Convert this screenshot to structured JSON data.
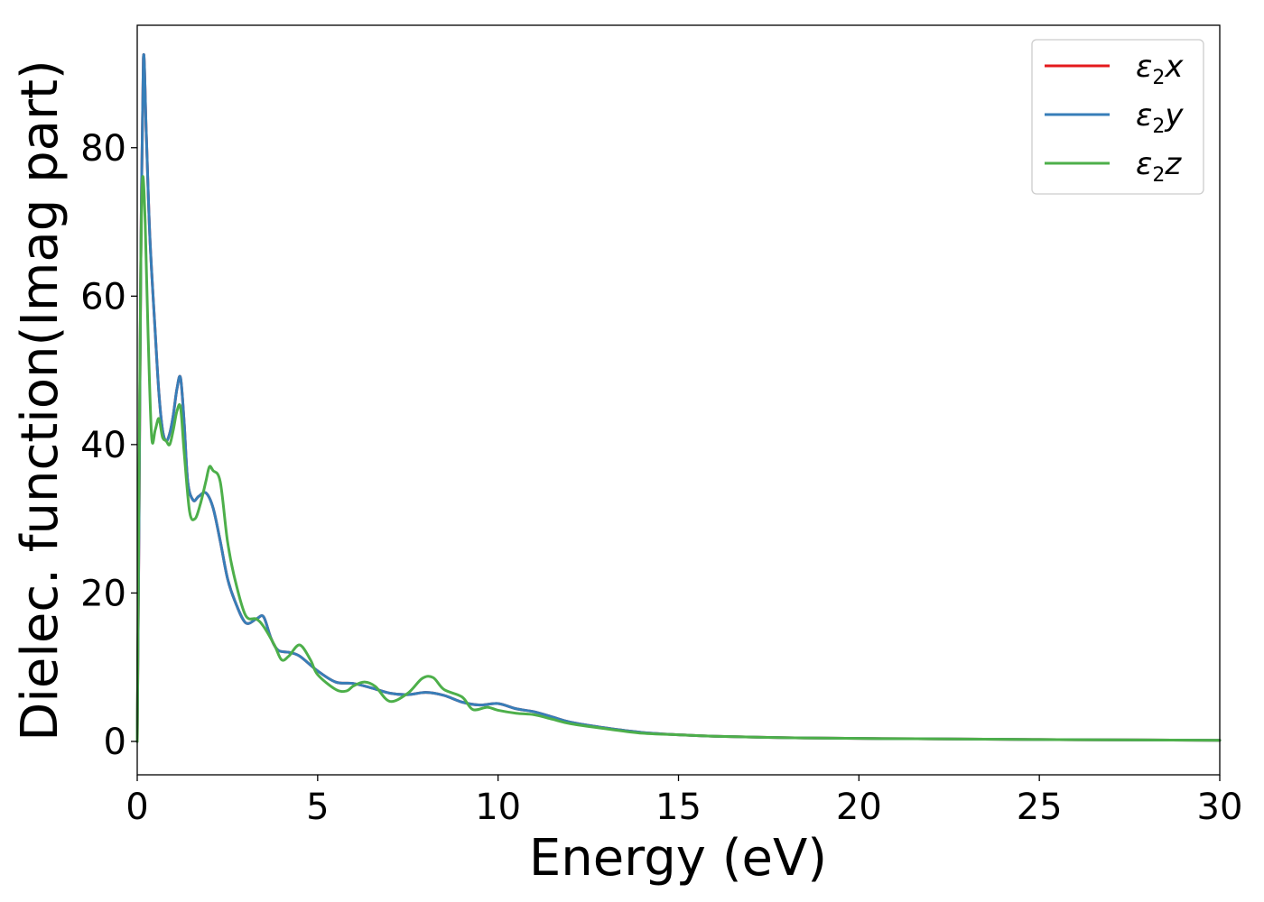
{
  "chart_data": {
    "type": "line",
    "xlabel": "Energy (eV)",
    "ylabel": "Dielec. function(Imag part)",
    "xlim": [
      0,
      30
    ],
    "ylim": [
      -4.5,
      96.5
    ],
    "xticks": [
      0,
      5,
      10,
      15,
      20,
      25,
      30
    ],
    "yticks": [
      0,
      20,
      40,
      60,
      80
    ],
    "grid": false,
    "legend_position": "top-right",
    "series": [
      {
        "name": "ε2x",
        "symbol": "ε",
        "sub": "2",
        "axis": "x",
        "color": "#e41a1c",
        "x": [
          0,
          0.05,
          0.1,
          0.17,
          0.25,
          0.35,
          0.5,
          0.6,
          0.7,
          0.8,
          0.9,
          1.0,
          1.1,
          1.2,
          1.3,
          1.4,
          1.55,
          1.7,
          1.9,
          2.1,
          2.3,
          2.5,
          2.7,
          3.0,
          3.3,
          3.5,
          3.7,
          3.9,
          4.2,
          4.5,
          5.0,
          5.5,
          6.0,
          6.5,
          7.0,
          7.5,
          8.0,
          8.5,
          9.0,
          9.5,
          10.0,
          10.5,
          11.0,
          11.5,
          12.0,
          13.0,
          14.0,
          15.0,
          16.0,
          18.0,
          20.0,
          22.0,
          25.0,
          28.0,
          30.0
        ],
        "y": [
          0,
          30,
          65,
          92,
          82,
          68,
          55,
          47,
          42,
          40.5,
          41.5,
          44,
          47.5,
          49,
          43,
          35,
          32.5,
          33,
          33.5,
          31.5,
          27,
          22,
          19,
          16,
          16.5,
          16.8,
          14,
          12.3,
          12,
          11.5,
          9.5,
          8,
          7.8,
          7.2,
          6.5,
          6.3,
          6.6,
          6.2,
          5.3,
          4.9,
          5.1,
          4.4,
          4.0,
          3.3,
          2.6,
          1.8,
          1.2,
          0.9,
          0.7,
          0.5,
          0.4,
          0.35,
          0.25,
          0.2,
          0.15
        ]
      },
      {
        "name": "ε2y",
        "symbol": "ε",
        "sub": "2",
        "axis": "y",
        "color": "#377eb8",
        "x": [
          0,
          0.05,
          0.1,
          0.17,
          0.25,
          0.35,
          0.5,
          0.6,
          0.7,
          0.8,
          0.9,
          1.0,
          1.1,
          1.2,
          1.3,
          1.4,
          1.55,
          1.7,
          1.9,
          2.1,
          2.3,
          2.5,
          2.7,
          3.0,
          3.3,
          3.5,
          3.7,
          3.9,
          4.2,
          4.5,
          5.0,
          5.5,
          6.0,
          6.5,
          7.0,
          7.5,
          8.0,
          8.5,
          9.0,
          9.5,
          10.0,
          10.5,
          11.0,
          11.5,
          12.0,
          13.0,
          14.0,
          15.0,
          16.0,
          18.0,
          20.0,
          22.0,
          25.0,
          28.0,
          30.0
        ],
        "y": [
          0,
          30,
          65,
          92,
          82,
          68,
          55,
          47,
          42,
          40.5,
          41.5,
          44,
          47.5,
          49,
          43,
          35,
          32.5,
          33,
          33.5,
          31.5,
          27,
          22,
          19,
          16,
          16.5,
          16.8,
          14,
          12.3,
          12,
          11.5,
          9.5,
          8,
          7.8,
          7.2,
          6.5,
          6.3,
          6.6,
          6.2,
          5.3,
          4.9,
          5.1,
          4.4,
          4.0,
          3.3,
          2.6,
          1.8,
          1.2,
          0.9,
          0.7,
          0.5,
          0.4,
          0.35,
          0.25,
          0.2,
          0.15
        ]
      },
      {
        "name": "ε2z",
        "symbol": "ε",
        "sub": "2",
        "axis": "z",
        "color": "#4daf4a",
        "x": [
          0,
          0.05,
          0.1,
          0.15,
          0.22,
          0.3,
          0.4,
          0.5,
          0.6,
          0.7,
          0.8,
          0.9,
          1.0,
          1.1,
          1.2,
          1.3,
          1.45,
          1.6,
          1.75,
          1.9,
          2.0,
          2.1,
          2.3,
          2.5,
          2.7,
          3.0,
          3.3,
          3.5,
          3.8,
          4.0,
          4.2,
          4.5,
          4.8,
          5.0,
          5.5,
          5.8,
          6.0,
          6.3,
          6.6,
          7.0,
          7.5,
          7.9,
          8.2,
          8.5,
          9.0,
          9.3,
          9.7,
          10.0,
          10.5,
          11.0,
          11.5,
          12.0,
          13.0,
          14.0,
          15.0,
          16.0,
          18.0,
          20.0,
          22.0,
          25.0,
          28.0,
          30.0
        ],
        "y": [
          0,
          35,
          65,
          76,
          70,
          55,
          41,
          42,
          43.5,
          41,
          40.5,
          40,
          42,
          44.5,
          45,
          39,
          31,
          30,
          32,
          35,
          37,
          36.5,
          35,
          27,
          22,
          17,
          16.5,
          15.5,
          13,
          11,
          11.5,
          13,
          11,
          9,
          7,
          6.8,
          7.5,
          8,
          7.4,
          5.4,
          6.5,
          8.5,
          8.6,
          7.0,
          6.0,
          4.3,
          4.6,
          4.2,
          3.8,
          3.6,
          3.0,
          2.4,
          1.7,
          1.1,
          0.9,
          0.7,
          0.5,
          0.4,
          0.35,
          0.25,
          0.2,
          0.15
        ]
      }
    ]
  }
}
